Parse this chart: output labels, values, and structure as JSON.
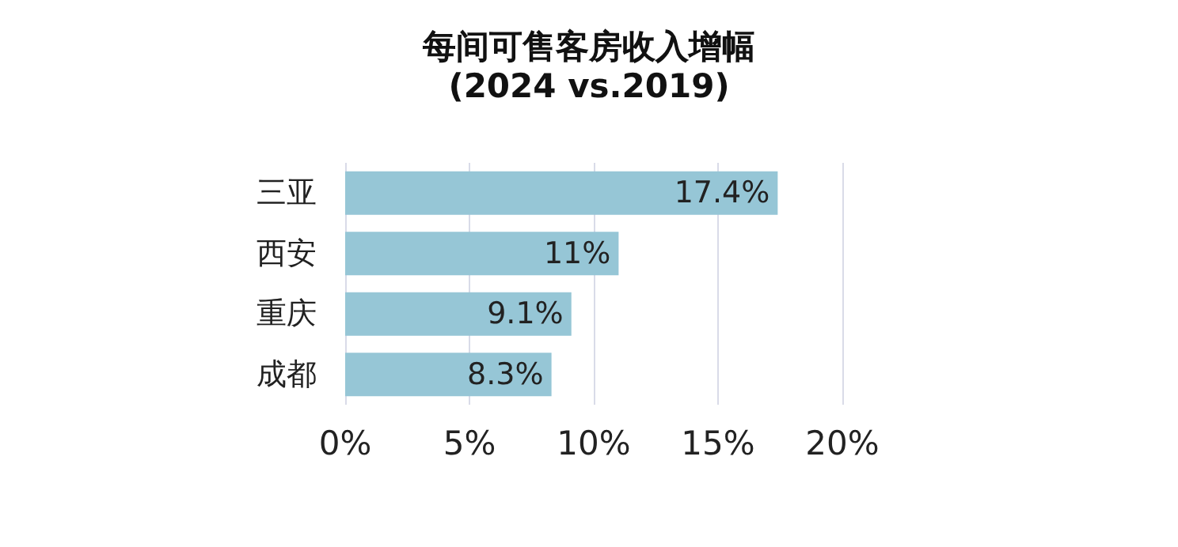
{
  "chart_data": {
    "type": "bar",
    "orientation": "horizontal",
    "title": "每间可售客房收入增幅",
    "subtitle": "(2024 vs.2019)",
    "categories": [
      "三亚",
      "西安",
      "重庆",
      "成都"
    ],
    "values": [
      17.4,
      11,
      9.1,
      8.3
    ],
    "value_labels": [
      "17.4%",
      "11%",
      "9.1%",
      "8.3%"
    ],
    "color": "#96c6d6",
    "xlim": [
      0,
      20
    ],
    "xticks": [
      {
        "value": 0,
        "label": "0%"
      },
      {
        "value": 5,
        "label": "5%"
      },
      {
        "value": 10,
        "label": "10%"
      },
      {
        "value": 15,
        "label": "15%"
      },
      {
        "value": 20,
        "label": "20%"
      }
    ],
    "grid": "x"
  }
}
